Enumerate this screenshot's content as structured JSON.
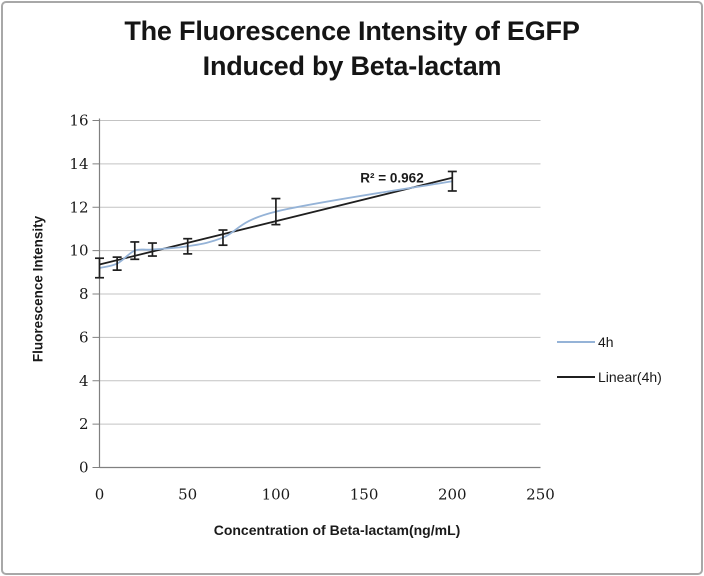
{
  "window": {
    "background": "#ffffff",
    "border_color": "#a8a8a8"
  },
  "chart_data": {
    "type": "line",
    "title": "The Fluorescence Intensity of EGFP Induced by Beta-lactam",
    "title_lines": [
      "The Fluorescence Intensity of EGFP",
      "Induced by Beta-lactam"
    ],
    "xlabel": "Concentration of Beta-lactam(ng/mL)",
    "ylabel": "Fluorescence Intensity",
    "xlim": [
      0,
      250
    ],
    "ylim": [
      0,
      16
    ],
    "x_ticks": [
      0,
      50,
      100,
      150,
      200,
      250
    ],
    "y_ticks": [
      0,
      2,
      4,
      6,
      8,
      10,
      12,
      14,
      16
    ],
    "grid": "horizontal-only",
    "legend_position": "right-middle",
    "series": [
      {
        "name": "4h",
        "color": "#95b3d7",
        "smooth": true,
        "x": [
          0,
          10,
          20,
          30,
          50,
          70,
          100,
          200
        ],
        "y": [
          9.2,
          9.4,
          10.0,
          10.05,
          10.2,
          10.6,
          11.8,
          13.2
        ],
        "error_y": [
          0.45,
          0.3,
          0.4,
          0.3,
          0.35,
          0.35,
          0.6,
          0.45
        ],
        "error_color": "#1f1f1f"
      }
    ],
    "trendline": {
      "name": "Linear(4h)",
      "color": "#1f1f1f",
      "slope": 0.02,
      "intercept": 9.36,
      "x_range": [
        0,
        200
      ]
    },
    "annotation": {
      "text": "R² = 0.962",
      "x_value": 165,
      "y_value": 13.35
    },
    "legend": [
      {
        "label": "4h",
        "color": "#95b3d7"
      },
      {
        "label": "Linear(4h)",
        "color": "#1f1f1f"
      }
    ],
    "colors": {
      "gridline": "#c3c3c3",
      "axis": "#808080",
      "text": "#1a1a1a"
    }
  }
}
